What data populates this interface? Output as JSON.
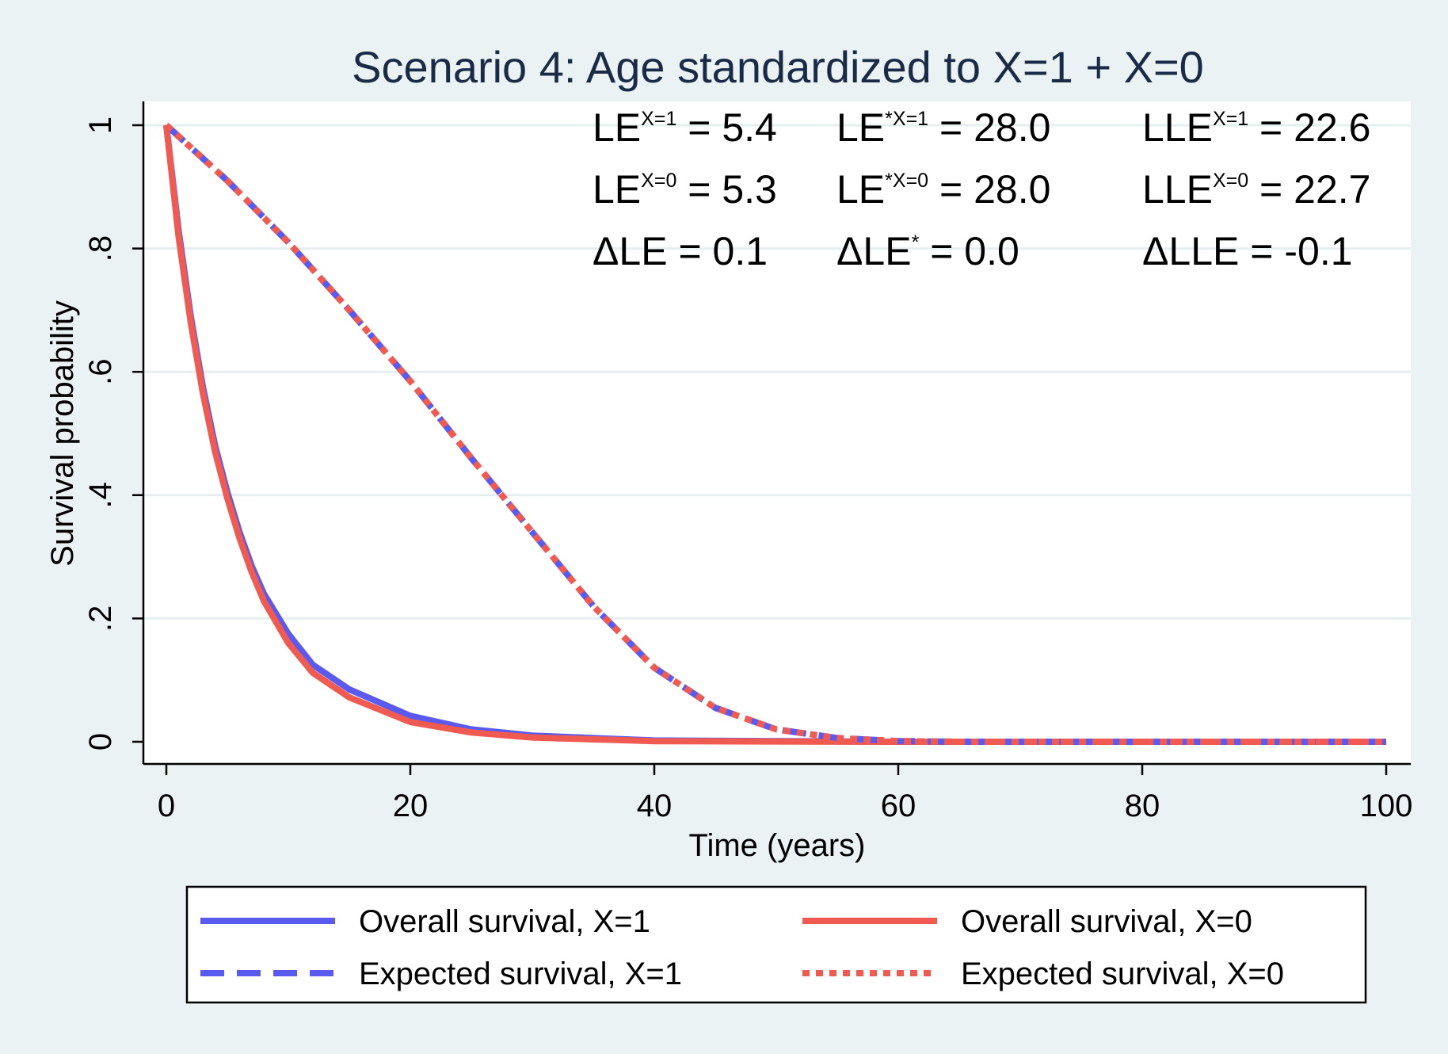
{
  "chart_data": {
    "type": "line",
    "title": "Scenario 4: Age standardized to X=1 + X=0",
    "xlabel": "Time (years)",
    "ylabel": "Survival probability",
    "xlim": [
      0,
      100
    ],
    "ylim": [
      0,
      1
    ],
    "xticks": [
      0,
      20,
      40,
      60,
      80,
      100
    ],
    "xtick_labels": [
      "0",
      "20",
      "40",
      "60",
      "80",
      "100"
    ],
    "yticks": [
      0,
      0.2,
      0.4,
      0.6,
      0.8,
      1
    ],
    "ytick_labels": [
      "0",
      ".2",
      ".4",
      ".6",
      ".8",
      "1"
    ],
    "grid": "horizontal",
    "legend_position": "bottom",
    "colors": {
      "blue": "#5a5af0",
      "red": "#f05a50",
      "plot_bg": "#ffffff",
      "page_bg": "#eaf2f3",
      "title": "#1a2b48"
    },
    "series": [
      {
        "name": "Overall survival, X=1",
        "color": "#5a5af0",
        "style": "solid",
        "x": [
          0,
          1,
          2,
          3,
          4,
          5,
          6,
          7,
          8,
          10,
          12,
          15,
          20,
          25,
          30,
          40,
          60,
          100
        ],
        "y": [
          1.0,
          0.83,
          0.69,
          0.575,
          0.48,
          0.405,
          0.34,
          0.285,
          0.24,
          0.175,
          0.125,
          0.085,
          0.042,
          0.02,
          0.01,
          0.002,
          0.0,
          0.0
        ]
      },
      {
        "name": "Overall survival, X=0",
        "color": "#f05a50",
        "style": "solid",
        "x": [
          0,
          1,
          2,
          3,
          4,
          5,
          6,
          7,
          8,
          10,
          12,
          15,
          20,
          25,
          30,
          40,
          60,
          100
        ],
        "y": [
          1.0,
          0.82,
          0.68,
          0.565,
          0.47,
          0.395,
          0.33,
          0.275,
          0.228,
          0.16,
          0.112,
          0.072,
          0.032,
          0.015,
          0.007,
          0.001,
          0.0,
          0.0
        ]
      },
      {
        "name": "Expected survival, X=1",
        "color": "#5a5af0",
        "style": "dashed",
        "x": [
          0,
          5,
          10,
          15,
          20,
          25,
          30,
          35,
          40,
          45,
          50,
          55,
          60,
          65,
          70,
          80,
          100
        ],
        "y": [
          1.0,
          0.91,
          0.81,
          0.7,
          0.585,
          0.46,
          0.34,
          0.22,
          0.12,
          0.055,
          0.02,
          0.006,
          0.001,
          0.0,
          0.0,
          0.0,
          0.0
        ]
      },
      {
        "name": "Expected survival, X=0",
        "color": "#f05a50",
        "style": "dotted",
        "x": [
          0,
          5,
          10,
          15,
          20,
          25,
          30,
          35,
          40,
          45,
          50,
          55,
          60,
          65,
          70,
          80,
          100
        ],
        "y": [
          1.0,
          0.91,
          0.81,
          0.7,
          0.585,
          0.46,
          0.34,
          0.22,
          0.12,
          0.055,
          0.02,
          0.006,
          0.001,
          0.0,
          0.0,
          0.0,
          0.0
        ]
      }
    ],
    "annotations": [
      [
        {
          "base": "LE",
          "sup": "X=1",
          "rest": " = 5.4"
        },
        {
          "base": "LE",
          "sup": "*X=1",
          "rest": " = 28.0"
        },
        {
          "base": "LLE",
          "sup": "X=1",
          "rest": " = 22.6"
        }
      ],
      [
        {
          "base": "LE",
          "sup": "X=0",
          "rest": " = 5.3"
        },
        {
          "base": "LE",
          "sup": "*X=0",
          "rest": " = 28.0"
        },
        {
          "base": "LLE",
          "sup": "X=0",
          "rest": " = 22.7"
        }
      ],
      [
        {
          "base": "ΔLE",
          "sup": "",
          "rest": " = 0.1"
        },
        {
          "base": "ΔLE",
          "sup": "*",
          "rest": " = 0.0"
        },
        {
          "base": "ΔLLE",
          "sup": "",
          "rest": " = -0.1"
        }
      ]
    ]
  }
}
